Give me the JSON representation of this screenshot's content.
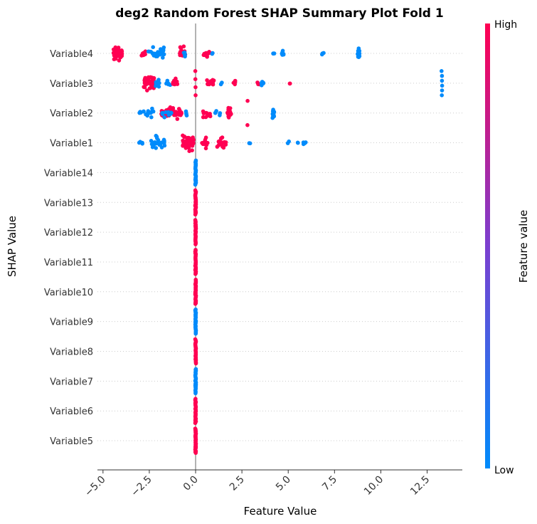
{
  "chart_data": {
    "type": "scatter",
    "title": "deg2 Random Forest SHAP Summary Plot Fold 1",
    "xlabel": "Feature Value",
    "ylabel": "SHAP Value",
    "xlim": [
      -5.3,
      14.4
    ],
    "xticks": [
      "−5.0",
      "−2.5",
      "0.0",
      "2.5",
      "5.0",
      "7.5",
      "10.0",
      "12.5"
    ],
    "xtick_values": [
      -5.0,
      -2.5,
      0.0,
      2.5,
      5.0,
      7.5,
      10.0,
      12.5
    ],
    "categories": [
      "Variable4",
      "Variable3",
      "Variable2",
      "Variable1",
      "Variable14",
      "Variable13",
      "Variable12",
      "Variable11",
      "Variable10",
      "Variable9",
      "Variable8",
      "Variable7",
      "Variable6",
      "Variable5"
    ],
    "colorbar": {
      "label": "Feature value",
      "high_label": "High",
      "low_label": "Low",
      "high_color": "#ff0052",
      "mid_color": "#7b3fd0",
      "low_color": "#008bfb"
    },
    "series": [
      {
        "category": "Variable4",
        "clusters": [
          {
            "x": -4.2,
            "spread": 0.25,
            "n": 40,
            "color": "#ff0052"
          },
          {
            "x": -2.8,
            "spread": 0.12,
            "n": 8,
            "color": "#ff0052"
          },
          {
            "x": -2.1,
            "spread": 0.45,
            "n": 25,
            "color": "#008bfb"
          },
          {
            "x": -0.7,
            "spread": 0.15,
            "n": 25,
            "color": "#ff0052"
          },
          {
            "x": -0.6,
            "spread": 0.05,
            "n": 6,
            "color": "#008bfb"
          },
          {
            "x": 0.6,
            "spread": 0.18,
            "n": 12,
            "color": "#ff0052"
          },
          {
            "x": 0.9,
            "spread": 0.05,
            "n": 2,
            "color": "#008bfb"
          },
          {
            "x": 4.2,
            "spread": 0.05,
            "n": 3,
            "color": "#008bfb"
          },
          {
            "x": 4.7,
            "spread": 0.05,
            "n": 6,
            "color": "#008bfb"
          },
          {
            "x": 6.9,
            "spread": 0.08,
            "n": 4,
            "color": "#008bfb"
          },
          {
            "x": 8.8,
            "spread": 0.05,
            "n": 20,
            "color": "#008bfb"
          }
        ]
      },
      {
        "category": "Variable3",
        "clusters": [
          {
            "x": -2.5,
            "spread": 0.3,
            "n": 40,
            "color": "#ff0052"
          },
          {
            "x": -2.3,
            "spread": 0.35,
            "n": 10,
            "color": "#008bfb"
          },
          {
            "x": -1.5,
            "spread": 0.15,
            "n": 6,
            "color": "#008bfb"
          },
          {
            "x": -1.1,
            "spread": 0.12,
            "n": 16,
            "color": "#ff0052"
          },
          {
            "x": 0.0,
            "spread": 0.03,
            "n": 4,
            "color": "#ff0052"
          },
          {
            "x": 0.8,
            "spread": 0.2,
            "n": 18,
            "color": "#ff0052"
          },
          {
            "x": 1.4,
            "spread": 0.05,
            "n": 2,
            "color": "#008bfb"
          },
          {
            "x": 2.1,
            "spread": 0.05,
            "n": 5,
            "color": "#ff0052"
          },
          {
            "x": 3.4,
            "spread": 0.08,
            "n": 3,
            "color": "#ff0052"
          },
          {
            "x": 3.6,
            "spread": 0.08,
            "n": 6,
            "color": "#008bfb"
          },
          {
            "x": 5.1,
            "spread": 0.05,
            "n": 2,
            "color": "#ff0052"
          },
          {
            "x": 13.3,
            "spread": 0.03,
            "n": 6,
            "color": "#008bfb"
          }
        ]
      },
      {
        "category": "Variable2",
        "clusters": [
          {
            "x": -3.0,
            "spread": 0.05,
            "n": 4,
            "color": "#008bfb"
          },
          {
            "x": -2.5,
            "spread": 0.35,
            "n": 12,
            "color": "#008bfb"
          },
          {
            "x": -1.3,
            "spread": 0.55,
            "n": 55,
            "color": "#ff0052"
          },
          {
            "x": -1.6,
            "spread": 0.3,
            "n": 12,
            "color": "#008bfb"
          },
          {
            "x": -0.5,
            "spread": 0.05,
            "n": 4,
            "color": "#008bfb"
          },
          {
            "x": 0.6,
            "spread": 0.2,
            "n": 12,
            "color": "#ff0052"
          },
          {
            "x": 1.2,
            "spread": 0.15,
            "n": 6,
            "color": "#008bfb"
          },
          {
            "x": 1.8,
            "spread": 0.12,
            "n": 16,
            "color": "#ff0052"
          },
          {
            "x": 2.8,
            "spread": 0.03,
            "n": 2,
            "color": "#ff0052"
          },
          {
            "x": 4.2,
            "spread": 0.05,
            "n": 16,
            "color": "#008bfb"
          }
        ]
      },
      {
        "category": "Variable1",
        "clusters": [
          {
            "x": -3.0,
            "spread": 0.15,
            "n": 4,
            "color": "#008bfb"
          },
          {
            "x": -2.0,
            "spread": 0.45,
            "n": 25,
            "color": "#008bfb"
          },
          {
            "x": -0.4,
            "spread": 0.3,
            "n": 55,
            "color": "#ff0052"
          },
          {
            "x": 0.5,
            "spread": 0.15,
            "n": 18,
            "color": "#ff0052"
          },
          {
            "x": 1.4,
            "spread": 0.25,
            "n": 18,
            "color": "#ff0052"
          },
          {
            "x": 2.9,
            "spread": 0.05,
            "n": 2,
            "color": "#008bfb"
          },
          {
            "x": 5.0,
            "spread": 0.05,
            "n": 2,
            "color": "#008bfb"
          },
          {
            "x": 5.5,
            "spread": 0.05,
            "n": 2,
            "color": "#008bfb"
          },
          {
            "x": 5.9,
            "spread": 0.1,
            "n": 6,
            "color": "#008bfb"
          }
        ]
      },
      {
        "category": "Variable14",
        "clusters": [
          {
            "x": 0.0,
            "spread": 0.02,
            "n": 30,
            "color": "#008bfb"
          }
        ]
      },
      {
        "category": "Variable13",
        "clusters": [
          {
            "x": 0.0,
            "spread": 0.02,
            "n": 30,
            "color": "#ff0052"
          }
        ]
      },
      {
        "category": "Variable12",
        "clusters": [
          {
            "x": 0.0,
            "spread": 0.02,
            "n": 30,
            "color": "#ff0052"
          }
        ]
      },
      {
        "category": "Variable11",
        "clusters": [
          {
            "x": 0.0,
            "spread": 0.02,
            "n": 30,
            "color": "#ff0052"
          }
        ]
      },
      {
        "category": "Variable10",
        "clusters": [
          {
            "x": 0.0,
            "spread": 0.02,
            "n": 30,
            "color": "#ff0052"
          }
        ]
      },
      {
        "category": "Variable9",
        "clusters": [
          {
            "x": 0.0,
            "spread": 0.02,
            "n": 30,
            "color": "#008bfb"
          }
        ]
      },
      {
        "category": "Variable8",
        "clusters": [
          {
            "x": 0.0,
            "spread": 0.02,
            "n": 30,
            "color": "#ff0052"
          }
        ]
      },
      {
        "category": "Variable7",
        "clusters": [
          {
            "x": 0.0,
            "spread": 0.02,
            "n": 30,
            "color": "#008bfb"
          }
        ]
      },
      {
        "category": "Variable6",
        "clusters": [
          {
            "x": 0.0,
            "spread": 0.02,
            "n": 30,
            "color": "#ff0052"
          }
        ]
      },
      {
        "category": "Variable5",
        "clusters": [
          {
            "x": 0.0,
            "spread": 0.02,
            "n": 30,
            "color": "#ff0052"
          }
        ]
      }
    ],
    "grid": "dotted-horizontal",
    "legend": "colorbar-right"
  }
}
